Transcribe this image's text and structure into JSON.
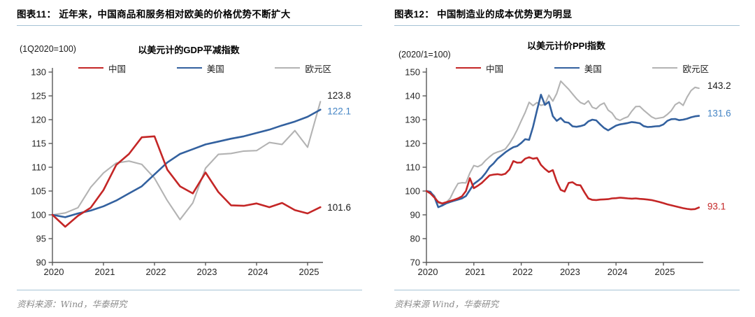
{
  "chart_data": [
    {
      "type": "line",
      "figure_title": "图表11：  近年来，中国商品和服务相对欧美的价格优势不断扩大",
      "axis_title": "以美元计的GDP平减指数",
      "unit_label": "(1Q2020=100)",
      "source": "资料来源：Wind，华泰研究",
      "grid": false,
      "legend_position": "top",
      "ylim": [
        90,
        130
      ],
      "y_step": 5,
      "x_start": 2020.0,
      "x_step": 0.25,
      "x_tick_labels": [
        "2020",
        "2021",
        "2022",
        "2023",
        "2024",
        "2025"
      ],
      "series": [
        {
          "name": "中国",
          "slug": "china",
          "color": "#c42626",
          "end_label": "101.6",
          "end_label_color": "#1a1a1a",
          "values": [
            100,
            97.5,
            99.8,
            101.5,
            105.2,
            110.5,
            112.8,
            116.3,
            116.5,
            109.5,
            106.0,
            104.5,
            108.9,
            104.8,
            102.0,
            101.9,
            102.4,
            101.6,
            102.5,
            101.0,
            100.3,
            101.6
          ]
        },
        {
          "name": "美国",
          "slug": "us",
          "color": "#33619f",
          "end_label": "122.1",
          "end_label_color": "#4484c4",
          "values": [
            100,
            99.5,
            100.3,
            100.9,
            101.8,
            103.0,
            104.5,
            106.0,
            108.5,
            111.0,
            112.8,
            113.8,
            114.8,
            115.4,
            116.0,
            116.5,
            117.2,
            117.9,
            118.8,
            119.6,
            120.6,
            122.1
          ]
        },
        {
          "name": "欧元区",
          "slug": "eurozone",
          "color": "#b3b3b3",
          "end_label": "123.8",
          "end_label_color": "#1a1a1a",
          "values": [
            100,
            100.4,
            101.5,
            105.8,
            108.8,
            110.9,
            111.3,
            110.6,
            107.7,
            103.0,
            99.0,
            102.5,
            109.8,
            112.7,
            112.9,
            113.4,
            113.5,
            115.2,
            114.8,
            117.7,
            114.2,
            123.8
          ]
        }
      ]
    },
    {
      "type": "line",
      "figure_title": "图表12：  中国制造业的成本优势更为明显",
      "axis_title": "以美元计价PPI指数",
      "unit_label": "(2020/1=100)",
      "source": "资料来源 Wind，华泰研究",
      "grid": false,
      "legend_position": "top",
      "ylim": [
        70,
        150
      ],
      "y_step": 10,
      "x_start": 2020.0,
      "x_step": 0.0833333,
      "x_tick_labels": [
        "2020",
        "2021",
        "2022",
        "2023",
        "2024",
        "2025"
      ],
      "series": [
        {
          "name": "中国",
          "slug": "china",
          "color": "#c42626",
          "end_label": "93.1",
          "end_label_color": "#c42626",
          "values": [
            100,
            99.0,
            97.3,
            95.4,
            94.8,
            95.3,
            95.8,
            96.3,
            96.9,
            97.8,
            100.0,
            105.4,
            101.2,
            102.2,
            103.4,
            105.0,
            106.6,
            106.9,
            107.1,
            106.8,
            107.3,
            109.0,
            112.6,
            111.9,
            112.0,
            113.6,
            114.2,
            113.6,
            113.9,
            111.0,
            109.3,
            108.0,
            108.8,
            104.0,
            100.5,
            99.8,
            103.4,
            103.7,
            102.6,
            102.4,
            99.5,
            96.9,
            96.3,
            96.2,
            96.4,
            96.5,
            96.6,
            96.9,
            97.0,
            97.2,
            97.1,
            96.9,
            96.8,
            96.9,
            96.7,
            96.6,
            96.4,
            96.2,
            95.8,
            95.4,
            94.9,
            94.4,
            94.0,
            93.6,
            93.2,
            92.8,
            92.5,
            92.3,
            92.4,
            93.1
          ]
        },
        {
          "name": "美国",
          "slug": "us",
          "color": "#33619f",
          "end_label": "131.6",
          "end_label_color": "#4484c4",
          "values": [
            100,
            99.7,
            97.6,
            93.2,
            93.9,
            94.8,
            95.4,
            95.9,
            96.4,
            96.9,
            97.9,
            100.4,
            103.0,
            104.2,
            105.6,
            107.6,
            110.1,
            111.6,
            113.6,
            114.9,
            116.3,
            117.4,
            118.4,
            118.9,
            120.2,
            121.8,
            121.5,
            127.0,
            134.0,
            140.5,
            136.2,
            137.5,
            131.5,
            129.5,
            130.7,
            129.0,
            128.7,
            127.2,
            127.0,
            127.3,
            127.8,
            129.3,
            130.0,
            129.7,
            128.0,
            126.5,
            125.5,
            126.5,
            127.5,
            128.0,
            128.3,
            128.6,
            129.0,
            128.8,
            128.5,
            127.3,
            126.9,
            127.0,
            127.2,
            127.3,
            128.0,
            129.5,
            130.2,
            130.3,
            129.8,
            130.0,
            130.4,
            131.0,
            131.4,
            131.6
          ]
        },
        {
          "name": "欧元区",
          "slug": "eurozone",
          "color": "#b3b3b3",
          "end_label": "143.2",
          "end_label_color": "#1a1a1a",
          "values": [
            100,
            99.4,
            98.1,
            95.0,
            94.4,
            95.2,
            96.9,
            100.3,
            103.2,
            103.5,
            103.4,
            107.6,
            110.7,
            110.2,
            111.1,
            112.9,
            114.4,
            115.7,
            116.4,
            116.9,
            117.7,
            119.9,
            122.6,
            125.8,
            129.5,
            133.0,
            137.3,
            135.9,
            137.2,
            136.0,
            136.5,
            140.3,
            137.8,
            141.0,
            146.2,
            144.5,
            142.8,
            140.8,
            138.8,
            137.2,
            136.5,
            137.9,
            135.2,
            134.6,
            136.2,
            137.0,
            134.0,
            132.8,
            130.4,
            129.7,
            130.6,
            131.2,
            133.6,
            135.5,
            135.6,
            134.0,
            132.6,
            131.2,
            130.4,
            130.7,
            131.0,
            132.2,
            133.8,
            136.3,
            137.3,
            136.0,
            139.5,
            142.2,
            143.6,
            143.2
          ]
        }
      ]
    }
  ]
}
